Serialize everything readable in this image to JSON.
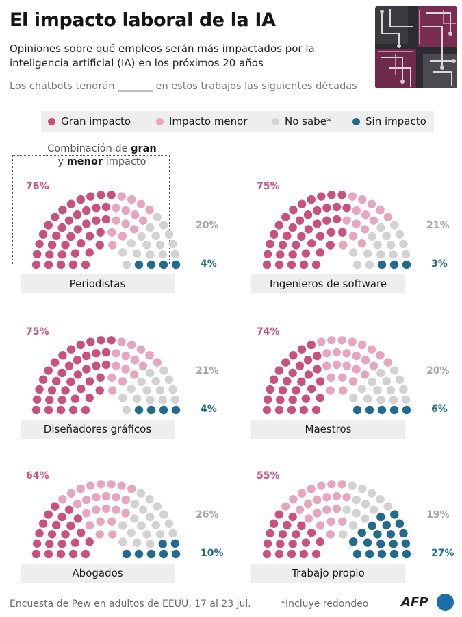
{
  "title": "El impacto laboral de la IA",
  "subtitle": "Opiniones sobre qué empleos serán más impactados por la inteligencia artificial (IA) en los próximos 20 años",
  "question": "Los chatbots tendrán _______ en estos trabajos las siguientes décadas",
  "legend": [
    {
      "label": "Gran impacto",
      "color": "#c9517f"
    },
    {
      "label": "Impacto menor",
      "color": "#e6a6be"
    },
    {
      "label": "No sabe*",
      "color": "#d2d2d2"
    },
    {
      "label": "Sin impacto",
      "color": "#236b8e"
    }
  ],
  "combo_note": {
    "pre": "Combinación de ",
    "bold1": "gran",
    "mid": "y ",
    "bold2": "menor",
    "post": " impacto"
  },
  "chart_data": [
    {
      "type": "parliament",
      "category": "Periodistas",
      "dots": {
        "gran": 38,
        "menor": 14,
        "no_sabe": 16,
        "sin": 4
      },
      "labels": {
        "combined": "76%",
        "no_sabe": "20%",
        "sin": "4%"
      }
    },
    {
      "type": "parliament",
      "category": "Ingenieros de software",
      "dots": {
        "gran": 40,
        "menor": 14,
        "no_sabe": 15,
        "sin": 3
      },
      "labels": {
        "combined": "75%",
        "no_sabe": "21%",
        "sin": "3%"
      }
    },
    {
      "type": "parliament",
      "category": "Diseñadores gráficos",
      "dots": {
        "gran": 38,
        "menor": 15,
        "no_sabe": 15,
        "sin": 4
      },
      "labels": {
        "combined": "75%",
        "no_sabe": "21%",
        "sin": "4%"
      }
    },
    {
      "type": "parliament",
      "category": "Maestros",
      "dots": {
        "gran": 29,
        "menor": 24,
        "no_sabe": 14,
        "sin": 5
      },
      "labels": {
        "combined": "74%",
        "no_sabe": "20%",
        "sin": "6%"
      }
    },
    {
      "type": "parliament",
      "category": "Abogados",
      "dots": {
        "gran": 22,
        "menor": 24,
        "no_sabe": 19,
        "sin": 7
      },
      "labels": {
        "combined": "64%",
        "no_sabe": "26%",
        "sin": "10%"
      }
    },
    {
      "type": "parliament",
      "category": "Trabajo propio",
      "dots": {
        "gran": 19,
        "menor": 21,
        "no_sabe": 13,
        "sin": 19
      },
      "labels": {
        "combined": "55%",
        "no_sabe": "19%",
        "sin": "27%"
      }
    }
  ],
  "footer": "Encuesta de Pew en adultos de EEUU, 17 al 23 jul.",
  "footnote": "*Incluye redondeo",
  "logo": "AFP"
}
